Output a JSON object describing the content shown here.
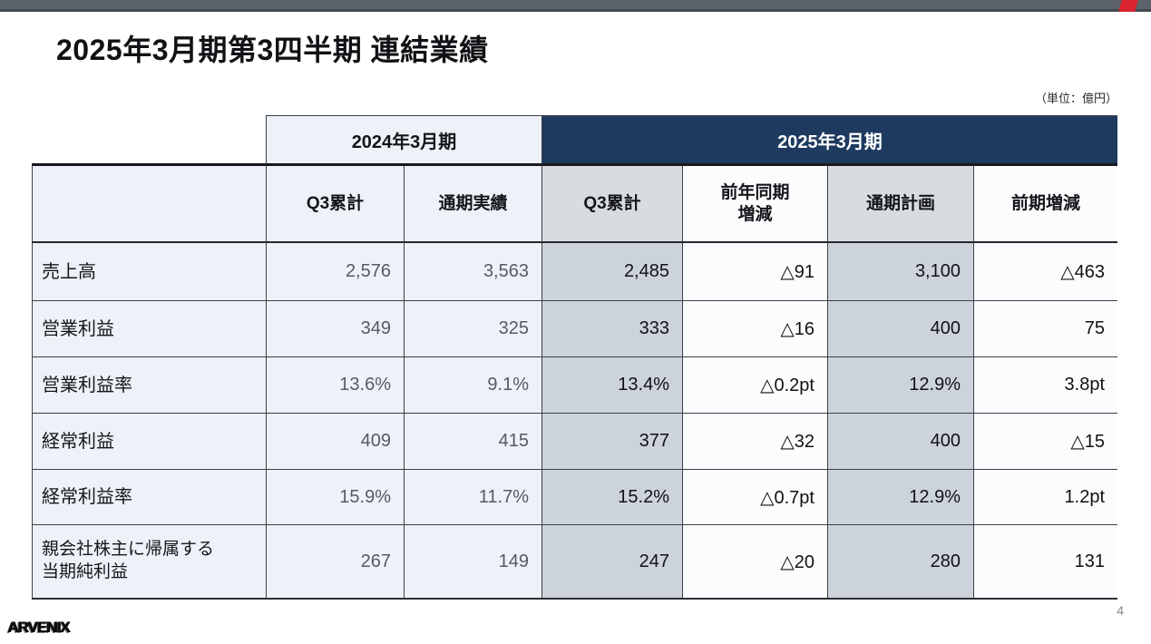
{
  "page": {
    "top_bar_color": "#5c6269",
    "accent_color": "#da2430",
    "navy_header_color": "#1e3a5f",
    "page_number": "4"
  },
  "header": {
    "title": "2025年3月期第3四半期 連結業績",
    "unit_note": "（単位：億円）"
  },
  "table": {
    "group_headers": [
      {
        "label": "2024年3月期"
      },
      {
        "label": "2025年3月期"
      }
    ],
    "columns": [
      "Q3累計",
      "通期実績",
      "Q3累計",
      "前年同期\n増減",
      "通期計画",
      "前期増減"
    ],
    "rows": [
      {
        "label": "売上高",
        "values": [
          "2,576",
          "3,563",
          "2,485",
          "△91",
          "3,100",
          "△463"
        ]
      },
      {
        "label": "営業利益",
        "values": [
          "349",
          "325",
          "333",
          "△16",
          "400",
          "75"
        ]
      },
      {
        "label": "営業利益率",
        "values": [
          "13.6%",
          "9.1%",
          "13.4%",
          "△0.2pt",
          "12.9%",
          "3.8pt"
        ]
      },
      {
        "label": "経常利益",
        "values": [
          "409",
          "415",
          "377",
          "△32",
          "400",
          "△15"
        ]
      },
      {
        "label": "経常利益率",
        "values": [
          "15.9%",
          "11.7%",
          "15.2%",
          "△0.7pt",
          "12.9%",
          "1.2pt"
        ]
      },
      {
        "label": "親会社株主に帰属する\n当期純利益",
        "values": [
          "267",
          "149",
          "247",
          "△20",
          "280",
          "131"
        ]
      }
    ]
  },
  "footer": {
    "logo_text": "ARVENIX",
    "page_number": "4"
  }
}
